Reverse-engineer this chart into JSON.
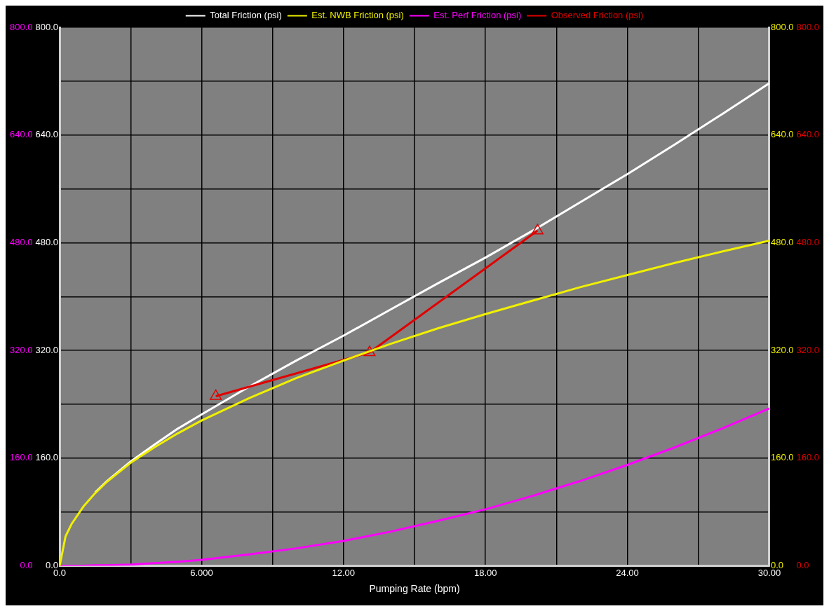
{
  "chart_data": {
    "type": "line",
    "xlabel": "Pumping Rate (bpm)",
    "legend": "top",
    "grid": true,
    "x": [
      0,
      0.25,
      0.5,
      1,
      1.5,
      2,
      3,
      4,
      5,
      6,
      8,
      10,
      12,
      14,
      16,
      18,
      20,
      22,
      24,
      26,
      28,
      30
    ],
    "xlim": [
      0,
      30
    ],
    "xticks": [
      {
        "value": 0,
        "label": "0.0"
      },
      {
        "value": 3,
        "label": null
      },
      {
        "value": 6,
        "label": "6.000"
      },
      {
        "value": 9,
        "label": null
      },
      {
        "value": 12,
        "label": "12.00"
      },
      {
        "value": 15,
        "label": null
      },
      {
        "value": 18,
        "label": "18.00"
      },
      {
        "value": 21,
        "label": null
      },
      {
        "value": 24,
        "label": "24.00"
      },
      {
        "value": 27,
        "label": null
      },
      {
        "value": 30,
        "label": "30.00"
      }
    ],
    "ylim": [
      0,
      800
    ],
    "yticks": [
      {
        "value": 0,
        "label": "0.0"
      },
      {
        "value": 80,
        "label": null
      },
      {
        "value": 160,
        "label": "160.0"
      },
      {
        "value": 240,
        "label": null
      },
      {
        "value": 320,
        "label": "320.0"
      },
      {
        "value": 400,
        "label": null
      },
      {
        "value": 480,
        "label": "480.0"
      },
      {
        "value": 560,
        "label": null
      },
      {
        "value": 640,
        "label": "640.0"
      },
      {
        "value": 720,
        "label": null
      },
      {
        "value": 800,
        "label": "800.0"
      }
    ],
    "y2lim": [
      0,
      800
    ],
    "y2ticks": [
      {
        "value": 0,
        "label": "0.0"
      },
      {
        "value": 160,
        "label": "160.0"
      },
      {
        "value": 320,
        "label": "320.0"
      },
      {
        "value": 480,
        "label": "480.0"
      },
      {
        "value": 640,
        "label": "640.0"
      },
      {
        "value": 800,
        "label": "800.0"
      }
    ],
    "y3lim": [
      0,
      800
    ],
    "y3ticks": [
      {
        "value": 0,
        "label": "0.0"
      },
      {
        "value": 160,
        "label": "160.0"
      },
      {
        "value": 320,
        "label": "320.0"
      },
      {
        "value": 480,
        "label": "480.0"
      },
      {
        "value": 640,
        "label": "640.0"
      },
      {
        "value": 800,
        "label": "800.0"
      }
    ],
    "series": [
      {
        "name": "Total Friction (psi)",
        "color": "#ffffff",
        "values": [
          null,
          null,
          null,
          null,
          109,
          126,
          155,
          180,
          204,
          225,
          266,
          305,
          342,
          381,
          420,
          458,
          498,
          540,
          582,
          626,
          671,
          717
        ]
      },
      {
        "name": "Est. NWB Friction (psi)",
        "color": "#f0f000",
        "axis": "y2",
        "values": [
          0,
          44,
          62,
          88,
          108,
          125,
          153,
          176,
          197,
          216,
          249,
          279,
          305,
          330,
          353,
          374,
          394,
          414,
          432,
          450,
          467,
          483
        ]
      },
      {
        "name": "Est. Perf Friction (psi)",
        "color": "#ff00ff",
        "axis": "y3",
        "values": [
          0,
          0,
          0,
          0,
          1,
          1,
          2,
          4,
          6,
          9,
          17,
          26,
          37,
          51,
          67,
          84,
          104,
          126,
          150,
          176,
          204,
          234
        ]
      },
      {
        "name": "Observed Friction (psi)",
        "color": "#e00000",
        "axis": "y2",
        "marker": "triangle",
        "x": [
          6.6,
          13.1,
          20.2
        ],
        "values": [
          252,
          317,
          498
        ]
      }
    ]
  }
}
